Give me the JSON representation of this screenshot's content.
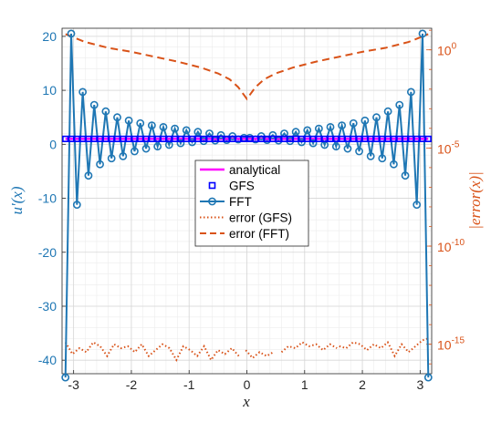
{
  "chart_data": {
    "type": "line",
    "x_axis": {
      "label": "x",
      "lim": [
        -3.2,
        3.2
      ],
      "ticks": [
        -3,
        -2,
        -1,
        0,
        1,
        2,
        3
      ],
      "tick_labels": [
        "-3",
        "-2",
        "-1",
        "0",
        "1",
        "2",
        "3"
      ]
    },
    "y_left": {
      "label": "u'(x)",
      "lim": [
        -42.5,
        21.5
      ],
      "ticks": [
        20,
        10,
        0,
        -10,
        -20,
        -30,
        -40
      ],
      "tick_labels": [
        "20",
        "10",
        "0",
        "-10",
        "-20",
        "-30",
        "-40"
      ],
      "color": "#1f77b4"
    },
    "y_right": {
      "label": "|error(x)|",
      "scale": "log",
      "lim_exponent": [
        -16.5,
        1.1
      ],
      "ticks_exponent": [
        0,
        -5,
        -10,
        -15
      ],
      "tick_labels": [
        {
          "base": "10",
          "exp": "0"
        },
        {
          "base": "10",
          "exp": "-5"
        },
        {
          "base": "10",
          "exp": "-10"
        },
        {
          "base": "10",
          "exp": "-15"
        }
      ],
      "color": "#d95319"
    },
    "grid": true,
    "minor_grid": true,
    "legend": {
      "placement": "center",
      "entries": [
        "analytical",
        "GFS",
        "FFT",
        "error (GFS)",
        "error (FFT)"
      ]
    },
    "series": [
      {
        "name": "analytical",
        "axis": "left",
        "color": "#ff00ff",
        "style": "solid",
        "x_range": [
          -3.14159,
          3.14159
        ],
        "values_note": "",
        "y_constant": 1.0
      },
      {
        "name": "GFS",
        "axis": "left",
        "color": "#0000ff",
        "style": "square-markers",
        "n_points": 64,
        "x_range": [
          -3.14159,
          3.14159
        ],
        "y_constant": 1.0
      },
      {
        "name": "FFT",
        "axis": "left",
        "color": "#1f77b4",
        "style": "solid-circles",
        "x_start": -3.14159,
        "x_end": 3.14159,
        "n_points": 64,
        "y": [
          -43.2,
          20.5,
          -11.2,
          9.7,
          -5.8,
          7.3,
          -3.7,
          6.1,
          -2.6,
          5.0,
          -2.2,
          4.4,
          -1.3,
          3.9,
          -0.8,
          3.5,
          -0.4,
          3.2,
          -0.1,
          2.9,
          0.2,
          2.6,
          0.4,
          2.3,
          0.6,
          2.0,
          0.7,
          1.7,
          0.8,
          1.5,
          0.9,
          1.2,
          1.2,
          0.9,
          1.5,
          0.8,
          1.7,
          0.7,
          2.0,
          0.6,
          2.3,
          0.4,
          2.6,
          0.2,
          2.9,
          -0.1,
          3.2,
          -0.4,
          3.5,
          -0.8,
          3.9,
          -1.3,
          4.4,
          -2.2,
          5.0,
          -2.6,
          6.1,
          -3.7,
          7.3,
          -5.8,
          9.7,
          -11.2,
          20.5,
          -43.2
        ]
      },
      {
        "name": "error (GFS)",
        "axis": "right",
        "color": "#d95319",
        "style": "dotted",
        "segments": [
          {
            "x": [
              -3.14,
              -3.02,
              -2.9,
              -2.78,
              -2.66,
              -2.54,
              -2.42,
              -2.3,
              -2.18,
              -2.06,
              -1.94,
              -1.82,
              -1.7,
              -1.58,
              -1.46,
              -1.34,
              -1.22,
              -1.1,
              -0.98,
              -0.86,
              -0.74,
              -0.62,
              -0.5,
              -0.38,
              -0.26,
              -0.14
            ],
            "y_exponent": [
              -14.9,
              -15.5,
              -15.2,
              -15.4,
              -14.9,
              -15.1,
              -15.6,
              -15.0,
              -15.2,
              -15.1,
              -15.4,
              -15.0,
              -15.6,
              -15.3,
              -15.0,
              -15.2,
              -15.8,
              -15.1,
              -15.3,
              -15.6,
              -15.1,
              -15.8,
              -15.3,
              -15.5,
              -15.2,
              -15.6
            ]
          },
          {
            "x": [
              -0.02,
              0.1,
              0.22,
              0.34,
              0.46
            ],
            "y_exponent": [
              -15.3,
              -15.7,
              -15.4,
              -15.6,
              -15.4
            ]
          },
          {
            "x": [
              0.6,
              0.72,
              0.84,
              0.96,
              1.08,
              1.2,
              1.32,
              1.44,
              1.56
            ],
            "y_exponent": [
              -15.4,
              -15.1,
              -15.2,
              -14.9,
              -15.1,
              -15.0,
              -15.3,
              -15.0,
              -15.2
            ]
          },
          {
            "x": [
              1.6,
              1.72,
              1.84,
              1.96,
              2.08,
              2.2,
              2.32,
              2.44,
              2.56,
              2.68,
              2.8,
              2.92,
              3.04,
              3.14
            ],
            "y_exponent": [
              -15.1,
              -15.2,
              -14.9,
              -15.0,
              -15.3,
              -15.0,
              -15.2,
              -14.9,
              -15.6,
              -15.0,
              -15.4,
              -15.1,
              -14.8,
              -14.7
            ]
          }
        ]
      },
      {
        "name": "error (FFT)",
        "axis": "right",
        "color": "#d95319",
        "style": "dashed",
        "x": [
          -3.14,
          -2.8,
          -2.4,
          -2.0,
          -1.6,
          -1.2,
          -0.8,
          -0.5,
          -0.3,
          -0.15,
          -0.05,
          0.0,
          0.05,
          0.15,
          0.3,
          0.5,
          0.8,
          1.2,
          1.6,
          2.0,
          2.4,
          2.8,
          3.14
        ],
        "y_exponent": [
          0.8,
          0.4,
          0.1,
          -0.1,
          -0.35,
          -0.6,
          -0.9,
          -1.2,
          -1.5,
          -1.9,
          -2.3,
          -2.5,
          -2.3,
          -1.9,
          -1.5,
          -1.2,
          -0.9,
          -0.6,
          -0.35,
          -0.1,
          0.1,
          0.4,
          0.8
        ]
      }
    ]
  }
}
